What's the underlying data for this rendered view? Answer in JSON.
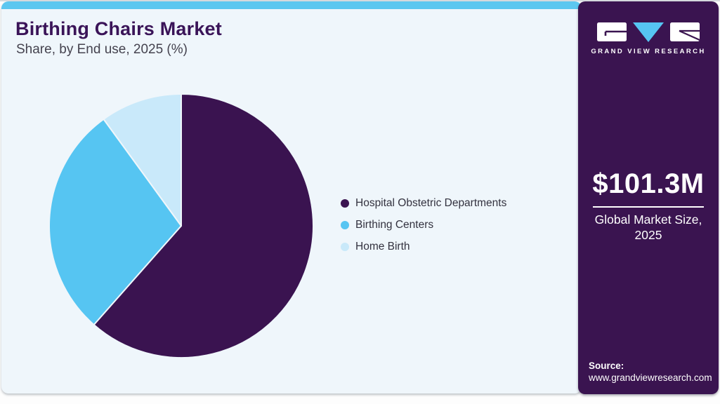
{
  "header": {
    "title": "Birthing Chairs Market",
    "subtitle": "Share, by End use, 2025 (%)"
  },
  "chart_data": {
    "type": "pie",
    "title": "Birthing Chairs Market Share, by End use, 2025 (%)",
    "categories": [
      "Hospital Obstetric Departments",
      "Birthing Centers",
      "Home Birth"
    ],
    "values": [
      61.5,
      28.5,
      10.0
    ],
    "unit": "%",
    "colors": [
      "#3a1350",
      "#56c5f2",
      "#c9e9fa"
    ],
    "start_angle_deg": 0,
    "direction": "clockwise",
    "legend_position": "right",
    "slice_gap_color": "#eff6fb"
  },
  "sidebar": {
    "brand": "GRAND VIEW RESEARCH",
    "market_size": {
      "value": "$101.3M",
      "label": "Global Market Size, 2025"
    },
    "source": {
      "label": "Source:",
      "url": "www.grandviewresearch.com"
    },
    "colors": {
      "background": "#3a1450",
      "logo_triangle": "#56c5f2"
    }
  },
  "theme": {
    "card_background": "#eff6fb",
    "accent_strip": "#5cc7f0",
    "title_color": "#3a1458",
    "subtitle_color": "#45434f",
    "legend_text_color": "#33323f"
  }
}
